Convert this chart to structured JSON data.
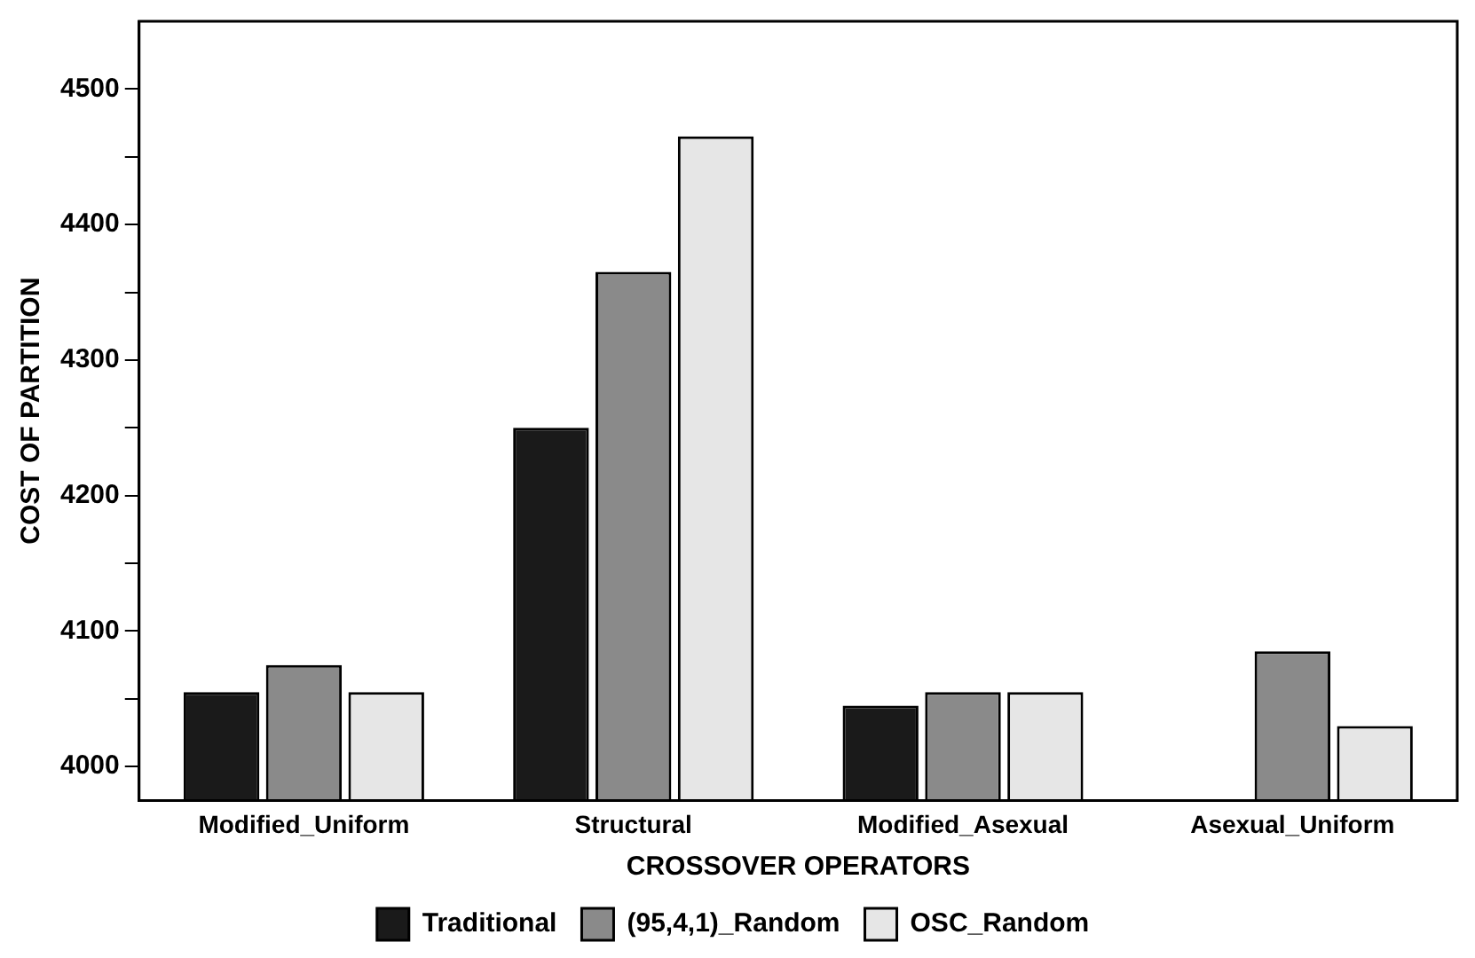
{
  "chart_data": {
    "type": "bar",
    "xlabel": "CROSSOVER OPERATORS",
    "ylabel": "COST OF PARTITION",
    "categories": [
      "Modified_Uniform",
      "Structural",
      "Modified_Asexual",
      "Asexual_Uniform"
    ],
    "series": [
      {
        "name": "Traditional",
        "color": "#1a1a1a",
        "values": [
          4055,
          4250,
          4045,
          null
        ]
      },
      {
        "name": "(95,4,1)_Random",
        "color": "#8a8a8a",
        "values": [
          4075,
          4365,
          4055,
          4085
        ]
      },
      {
        "name": "OSC_Random",
        "color": "#e6e6e6",
        "values": [
          4055,
          4465,
          4055,
          4030
        ]
      }
    ],
    "ylim": [
      3975,
      4550
    ],
    "yticks": [
      4000,
      {
        "value": 4050,
        "label": null
      },
      4100,
      {
        "value": 4150,
        "label": null
      },
      4200,
      {
        "value": 4250,
        "label": null
      },
      4300,
      {
        "value": 4350,
        "label": null
      },
      4400,
      {
        "value": 4450,
        "label": null
      },
      4500
    ],
    "grid": false,
    "legend": "bottom"
  }
}
